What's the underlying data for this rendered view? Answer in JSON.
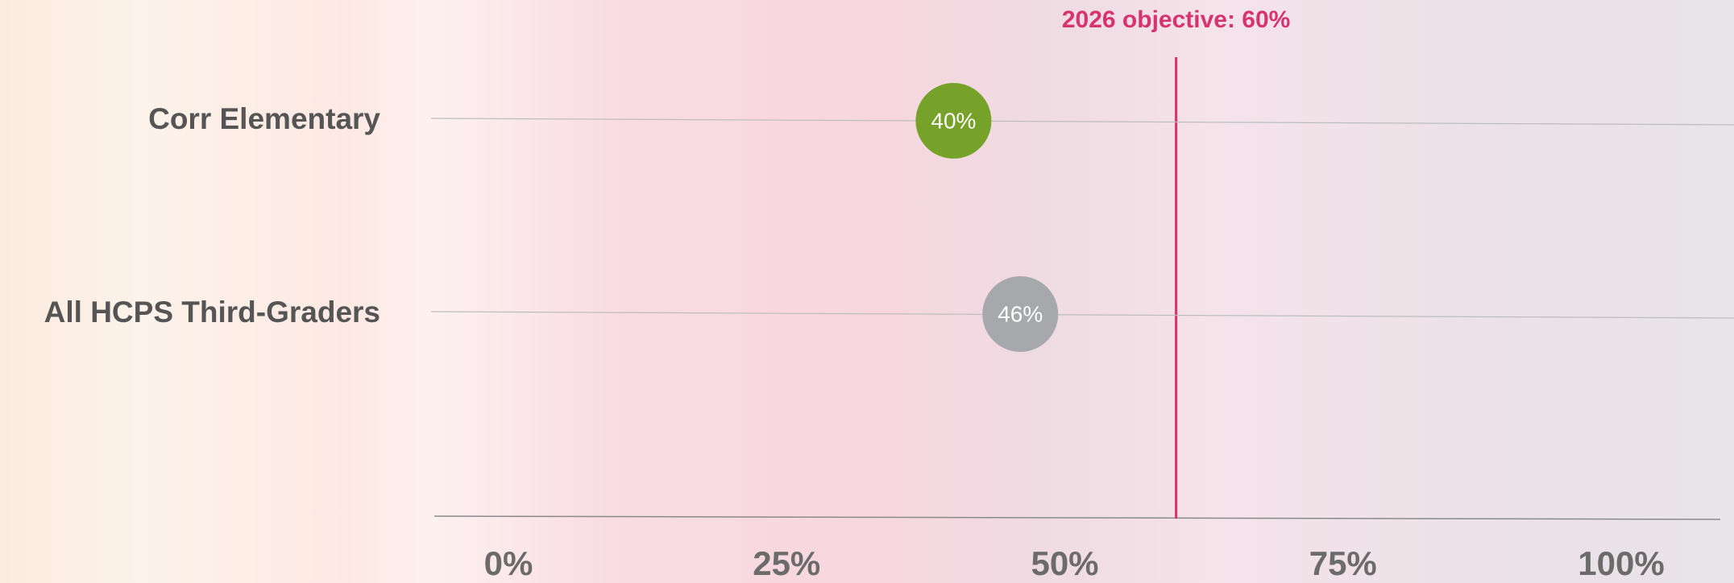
{
  "chart_data": {
    "type": "dot",
    "categories": [
      "Corr Elementary",
      "All HCPS Third-Graders"
    ],
    "values": [
      40,
      46
    ],
    "value_labels": [
      "40%",
      "46%"
    ],
    "colors": [
      "#76a22a",
      "#a7a8ab"
    ],
    "xlim": [
      0,
      100
    ],
    "xticks": [
      {
        "value": 0,
        "label": "0%"
      },
      {
        "value": 25,
        "label": "25%"
      },
      {
        "value": 50,
        "label": "50%"
      },
      {
        "value": 75,
        "label": "75%"
      },
      {
        "value": 100,
        "label": "100%"
      }
    ],
    "target": {
      "value": 60,
      "label": "2026 objective: 60%",
      "color": "#d6336f"
    }
  }
}
